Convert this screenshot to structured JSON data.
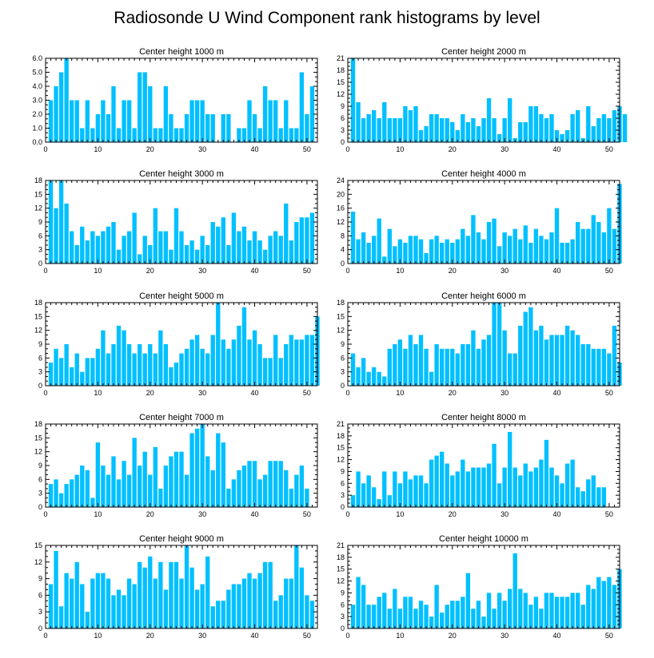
{
  "title": "Radiosonde U Wind Component rank histograms by level",
  "colors": {
    "bar": "#00c0ff",
    "axis": "#000000"
  },
  "chart_data": [
    {
      "type": "bar",
      "title": "Center height 1000 m",
      "xlim": [
        0,
        52
      ],
      "xticks": [
        0,
        10,
        20,
        30,
        40,
        50
      ],
      "ylim": [
        0,
        6
      ],
      "yticks": [
        "0.0",
        "1.0",
        "2.0",
        "3.0",
        "4.0",
        "5.0",
        "6.0"
      ],
      "values": [
        3,
        4,
        5,
        6,
        3,
        3,
        1,
        3,
        1,
        2,
        3,
        2,
        4,
        1,
        3,
        3,
        1,
        5,
        5,
        4,
        1,
        1,
        4,
        2,
        1,
        1,
        2,
        3,
        3,
        3,
        2,
        2,
        0,
        2,
        2,
        0,
        1,
        1,
        3,
        2,
        1,
        4,
        3,
        3,
        1,
        3,
        1,
        1,
        5,
        2,
        4
      ]
    },
    {
      "type": "bar",
      "title": "Center height 2000 m",
      "xlim": [
        0,
        52
      ],
      "xticks": [
        0,
        10,
        20,
        30,
        40,
        50
      ],
      "ylim": [
        0,
        21
      ],
      "yticks": [
        "0",
        "3",
        "6",
        "9",
        "12",
        "15",
        "18",
        "21"
      ],
      "values": [
        21,
        10,
        6,
        7,
        8,
        6,
        10,
        6,
        6,
        6,
        9,
        8,
        9,
        3,
        4,
        7,
        7,
        6,
        6,
        5,
        3,
        7,
        5,
        6,
        4,
        6,
        11,
        6,
        2,
        6,
        11,
        1,
        5,
        5,
        9,
        9,
        7,
        6,
        7,
        3,
        2,
        3,
        7,
        8,
        1,
        9,
        4,
        6,
        7,
        6,
        8,
        9,
        7
      ]
    },
    {
      "type": "bar",
      "title": "Center height 3000 m",
      "xlim": [
        0,
        52
      ],
      "xticks": [
        0,
        10,
        20,
        30,
        40,
        50
      ],
      "ylim": [
        0,
        18
      ],
      "yticks": [
        "0",
        "3",
        "6",
        "9",
        "12",
        "15",
        "18"
      ],
      "values": [
        18,
        12,
        18,
        13,
        7,
        4,
        8,
        5,
        7,
        6,
        7,
        8,
        9,
        3,
        6,
        7,
        11,
        2,
        6,
        4,
        12,
        7,
        7,
        3,
        12,
        7,
        4,
        5,
        3,
        6,
        4,
        9,
        8,
        10,
        4,
        11,
        7,
        8,
        5,
        7,
        5,
        3,
        6,
        7,
        6,
        13,
        5,
        9,
        10,
        10,
        11
      ]
    },
    {
      "type": "bar",
      "title": "Center height 4000 m",
      "xlim": [
        0,
        52
      ],
      "xticks": [
        0,
        10,
        20,
        30,
        40,
        50
      ],
      "ylim": [
        0,
        24
      ],
      "yticks": [
        "0",
        "4",
        "8",
        "12",
        "16",
        "20",
        "24"
      ],
      "values": [
        15,
        7,
        9,
        6,
        8,
        13,
        2,
        10,
        5,
        7,
        6,
        8,
        8,
        7,
        3,
        7,
        8,
        6,
        7,
        6,
        7,
        10,
        8,
        14,
        9,
        7,
        12,
        13,
        5,
        9,
        8,
        10,
        7,
        11,
        6,
        10,
        8,
        7,
        9,
        16,
        6,
        6,
        7,
        12,
        10,
        10,
        14,
        12,
        9,
        16,
        10,
        23
      ]
    },
    {
      "type": "bar",
      "title": "Center height 5000 m",
      "xlim": [
        0,
        52
      ],
      "xticks": [
        0,
        10,
        20,
        30,
        40,
        50
      ],
      "ylim": [
        0,
        18
      ],
      "yticks": [
        "0",
        "3",
        "6",
        "9",
        "12",
        "15",
        "18"
      ],
      "values": [
        5,
        8,
        6,
        9,
        4,
        7,
        3,
        6,
        6,
        8,
        12,
        7,
        9,
        13,
        12,
        9,
        7,
        9,
        7,
        9,
        7,
        12,
        9,
        4,
        5,
        7,
        8,
        10,
        11,
        8,
        7,
        11,
        18,
        10,
        8,
        10,
        13,
        17,
        10,
        12,
        9,
        6,
        6,
        11,
        6,
        9,
        11,
        10,
        10,
        11,
        11,
        15
      ]
    },
    {
      "type": "bar",
      "title": "Center height 6000 m",
      "xlim": [
        0,
        52
      ],
      "xticks": [
        0,
        10,
        20,
        30,
        40,
        50
      ],
      "ylim": [
        0,
        18
      ],
      "yticks": [
        "0",
        "3",
        "6",
        "9",
        "12",
        "15",
        "18"
      ],
      "values": [
        7,
        4,
        6,
        3,
        4,
        3,
        2,
        8,
        9,
        10,
        8,
        11,
        9,
        11,
        8,
        3,
        9,
        8,
        8,
        8,
        7,
        9,
        9,
        12,
        8,
        10,
        11,
        18,
        18,
        12,
        7,
        7,
        13,
        16,
        17,
        12,
        13,
        10,
        11,
        11,
        11,
        13,
        12,
        11,
        9,
        9,
        8,
        8,
        8,
        7,
        13,
        5
      ]
    },
    {
      "type": "bar",
      "title": "Center height 7000 m",
      "xlim": [
        0,
        52
      ],
      "xticks": [
        0,
        10,
        20,
        30,
        40,
        50
      ],
      "ylim": [
        0,
        18
      ],
      "yticks": [
        "0",
        "3",
        "6",
        "9",
        "12",
        "15",
        "18"
      ],
      "values": [
        5,
        6,
        3,
        5,
        6,
        7,
        9,
        8,
        2,
        14,
        9,
        7,
        11,
        6,
        10,
        7,
        15,
        9,
        12,
        7,
        13,
        4,
        9,
        11,
        12,
        12,
        7,
        16,
        17,
        18,
        11,
        8,
        16,
        14,
        4,
        6,
        8,
        9,
        10,
        10,
        6,
        7,
        10,
        10,
        10,
        8,
        4,
        7,
        9,
        4
      ]
    },
    {
      "type": "bar",
      "title": "Center height 8000 m",
      "xlim": [
        0,
        52
      ],
      "xticks": [
        0,
        10,
        20,
        30,
        40,
        50
      ],
      "ylim": [
        0,
        21
      ],
      "yticks": [
        "0",
        "3",
        "6",
        "9",
        "12",
        "15",
        "18",
        "21"
      ],
      "values": [
        3,
        9,
        6,
        8,
        5,
        2,
        9,
        3,
        9,
        6,
        9,
        7,
        8,
        8,
        6,
        12,
        13,
        14,
        11,
        8,
        9,
        12,
        9,
        10,
        10,
        10,
        11,
        16,
        6,
        10,
        19,
        10,
        8,
        11,
        9,
        10,
        12,
        17,
        10,
        8,
        6,
        11,
        12,
        5,
        4,
        7,
        8,
        5,
        5
      ]
    },
    {
      "type": "bar",
      "title": "Center height 9000 m",
      "xlim": [
        0,
        52
      ],
      "xticks": [
        0,
        10,
        20,
        30,
        40,
        50
      ],
      "ylim": [
        0,
        15
      ],
      "yticks": [
        "0",
        "3",
        "6",
        "9",
        "12",
        "15"
      ],
      "values": [
        8,
        14,
        4,
        10,
        9,
        12,
        8,
        3,
        9,
        10,
        10,
        9,
        6,
        7,
        6,
        9,
        8,
        12,
        11,
        13,
        9,
        12,
        7,
        12,
        12,
        9,
        15,
        11,
        7,
        8,
        13,
        4,
        5,
        5,
        7,
        8,
        8,
        9,
        10,
        9,
        10,
        12,
        12,
        5,
        6,
        9,
        9,
        15,
        11,
        6,
        5
      ]
    },
    {
      "type": "bar",
      "title": "Center height 10000 m",
      "xlim": [
        0,
        52
      ],
      "xticks": [
        0,
        10,
        20,
        30,
        40,
        50
      ],
      "ylim": [
        0,
        21
      ],
      "yticks": [
        "0",
        "3",
        "6",
        "9",
        "12",
        "15",
        "18",
        "21"
      ],
      "values": [
        6,
        13,
        11,
        6,
        6,
        8,
        9,
        5,
        10,
        5,
        8,
        8,
        5,
        7,
        6,
        3,
        11,
        4,
        6,
        7,
        7,
        8,
        14,
        5,
        7,
        3,
        9,
        5,
        9,
        7,
        10,
        19,
        10,
        9,
        6,
        8,
        5,
        9,
        9,
        8,
        8,
        8,
        9,
        9,
        6,
        11,
        10,
        13,
        12,
        13,
        11,
        15
      ]
    }
  ]
}
